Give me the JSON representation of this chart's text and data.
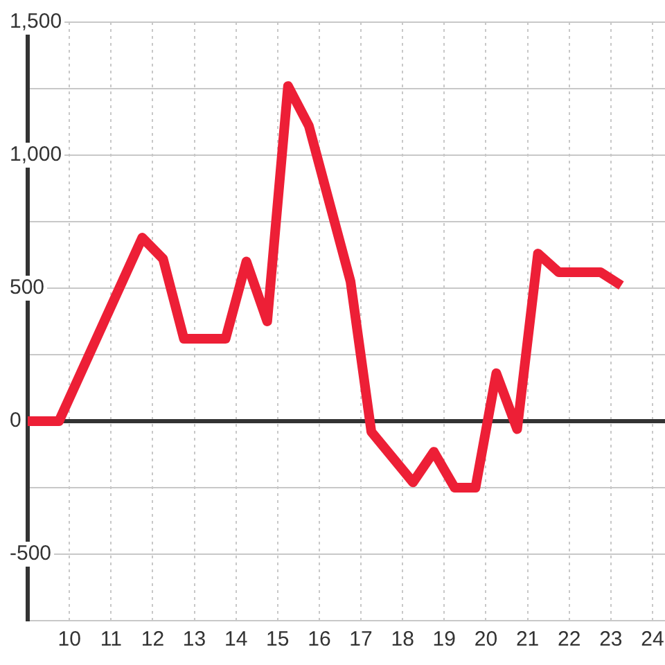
{
  "chart_data": {
    "type": "line",
    "x": [
      9,
      9.75,
      11.75,
      12.25,
      12.75,
      13.75,
      14.25,
      14.75,
      15.25,
      15.75,
      16.75,
      17.25,
      18.25,
      18.75,
      19.25,
      19.75,
      20.25,
      20.75,
      21.25,
      21.75,
      22.75,
      23.25
    ],
    "values": [
      0,
      0,
      690,
      610,
      310,
      310,
      600,
      375,
      1260,
      1110,
      525,
      -40,
      -230,
      -115,
      -250,
      -250,
      180,
      -30,
      630,
      560,
      560,
      510
    ],
    "color": "#ed1f36",
    "xlim": [
      9,
      24.3
    ],
    "xticks": [
      10,
      11,
      12,
      13,
      14,
      15,
      16,
      17,
      18,
      19,
      20,
      21,
      22,
      23,
      24
    ],
    "ylim": [
      -750,
      1500
    ],
    "yticks": [
      {
        "value": -750,
        "label": null
      },
      -500,
      {
        "value": -250,
        "label": null
      },
      0,
      {
        "value": 250,
        "label": null
      },
      500,
      {
        "value": 750,
        "label": null
      },
      {
        "value": 1000,
        "label": "1,000"
      },
      {
        "value": 1250,
        "label": null
      },
      {
        "value": 1500,
        "label": "1,500"
      }
    ],
    "grid": true,
    "ref_lines": [
      {
        "axis": "y",
        "value": 0,
        "color": "#333333"
      }
    ]
  }
}
